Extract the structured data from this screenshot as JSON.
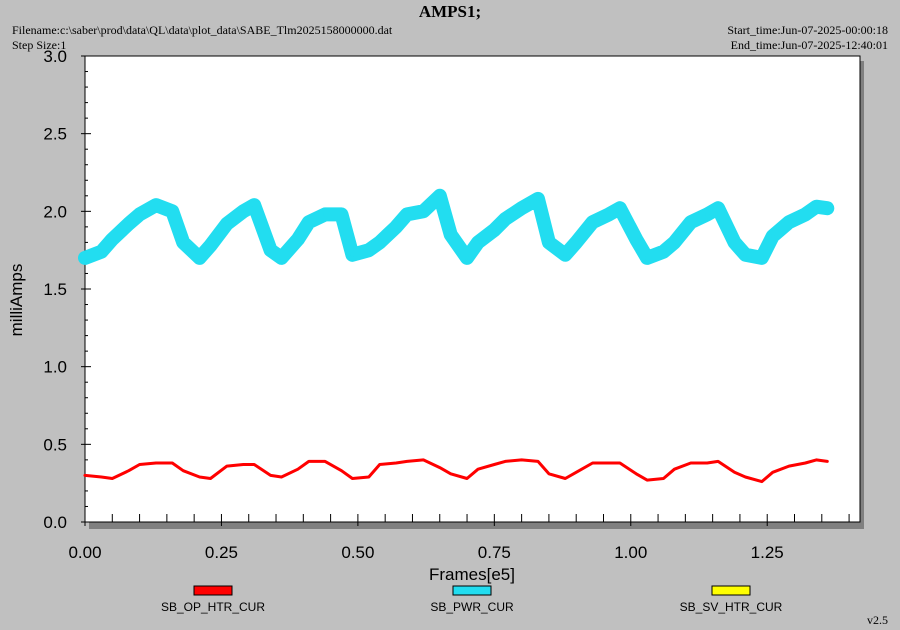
{
  "header": {
    "title": "AMPS1;",
    "filename": "Filename:c:\\saber\\prod\\data\\QL\\data\\plot_data\\SABE_Tlm2025158000000.dat",
    "step_size": "Step Size:1",
    "start_time": "Start_time:Jun-07-2025-00:00:18",
    "end_time": "End_time:Jun-07-2025-12:40:01"
  },
  "footer": {
    "version": "v2.5"
  },
  "chart_data": {
    "type": "line",
    "title": "AMPS1;",
    "xlabel": "Frames[e5]",
    "ylabel": "milliAmps",
    "xlim": [
      0,
      1.42
    ],
    "ylim": [
      0,
      3.0
    ],
    "x_ticks": [
      "0.00",
      "0.25",
      "0.50",
      "0.75",
      "1.00",
      "1.25"
    ],
    "y_ticks": [
      "0.0",
      "0.5",
      "1.0",
      "1.5",
      "2.0",
      "2.5",
      "3.0"
    ],
    "grid": false,
    "legend_placement": "bottom",
    "series": [
      {
        "name": "SB_OP_HTR_CUR",
        "color": "#ff0000",
        "x": [
          0.0,
          0.03,
          0.05,
          0.08,
          0.1,
          0.13,
          0.16,
          0.18,
          0.21,
          0.23,
          0.26,
          0.29,
          0.31,
          0.34,
          0.36,
          0.39,
          0.41,
          0.44,
          0.47,
          0.49,
          0.52,
          0.54,
          0.57,
          0.59,
          0.62,
          0.65,
          0.67,
          0.7,
          0.72,
          0.75,
          0.77,
          0.8,
          0.83,
          0.85,
          0.88,
          0.9,
          0.93,
          0.96,
          0.98,
          1.01,
          1.03,
          1.06,
          1.08,
          1.11,
          1.14,
          1.16,
          1.19,
          1.21,
          1.24,
          1.26,
          1.29,
          1.32,
          1.34,
          1.36
        ],
        "values": [
          0.3,
          0.29,
          0.28,
          0.33,
          0.37,
          0.38,
          0.38,
          0.33,
          0.29,
          0.28,
          0.36,
          0.37,
          0.37,
          0.3,
          0.29,
          0.34,
          0.39,
          0.39,
          0.33,
          0.28,
          0.29,
          0.37,
          0.38,
          0.39,
          0.4,
          0.35,
          0.31,
          0.28,
          0.34,
          0.37,
          0.39,
          0.4,
          0.39,
          0.31,
          0.28,
          0.32,
          0.38,
          0.38,
          0.38,
          0.31,
          0.27,
          0.28,
          0.34,
          0.38,
          0.38,
          0.39,
          0.32,
          0.29,
          0.26,
          0.32,
          0.36,
          0.38,
          0.4,
          0.39
        ]
      },
      {
        "name": "SB_PWR_CUR",
        "color": "#22ddf0",
        "x": [
          0.0,
          0.03,
          0.05,
          0.08,
          0.1,
          0.13,
          0.16,
          0.18,
          0.21,
          0.23,
          0.26,
          0.29,
          0.31,
          0.34,
          0.36,
          0.39,
          0.41,
          0.44,
          0.47,
          0.49,
          0.52,
          0.54,
          0.57,
          0.59,
          0.62,
          0.65,
          0.67,
          0.7,
          0.72,
          0.75,
          0.77,
          0.8,
          0.83,
          0.85,
          0.88,
          0.9,
          0.93,
          0.96,
          0.98,
          1.01,
          1.03,
          1.06,
          1.08,
          1.11,
          1.14,
          1.16,
          1.19,
          1.21,
          1.24,
          1.26,
          1.29,
          1.32,
          1.34,
          1.36
        ],
        "values": [
          1.7,
          1.74,
          1.82,
          1.92,
          1.98,
          2.04,
          2.0,
          1.8,
          1.7,
          1.78,
          1.92,
          2.0,
          2.04,
          1.75,
          1.7,
          1.82,
          1.93,
          1.98,
          1.98,
          1.72,
          1.75,
          1.8,
          1.9,
          1.98,
          2.0,
          2.1,
          1.85,
          1.7,
          1.8,
          1.88,
          1.95,
          2.02,
          2.08,
          1.8,
          1.72,
          1.8,
          1.93,
          1.98,
          2.02,
          1.82,
          1.7,
          1.74,
          1.8,
          1.93,
          1.98,
          2.02,
          1.8,
          1.72,
          1.7,
          1.84,
          1.93,
          1.98,
          2.03,
          2.02
        ]
      },
      {
        "name": "SB_SV_HTR_CUR",
        "color": "#ffff00",
        "x": [],
        "values": []
      }
    ]
  }
}
